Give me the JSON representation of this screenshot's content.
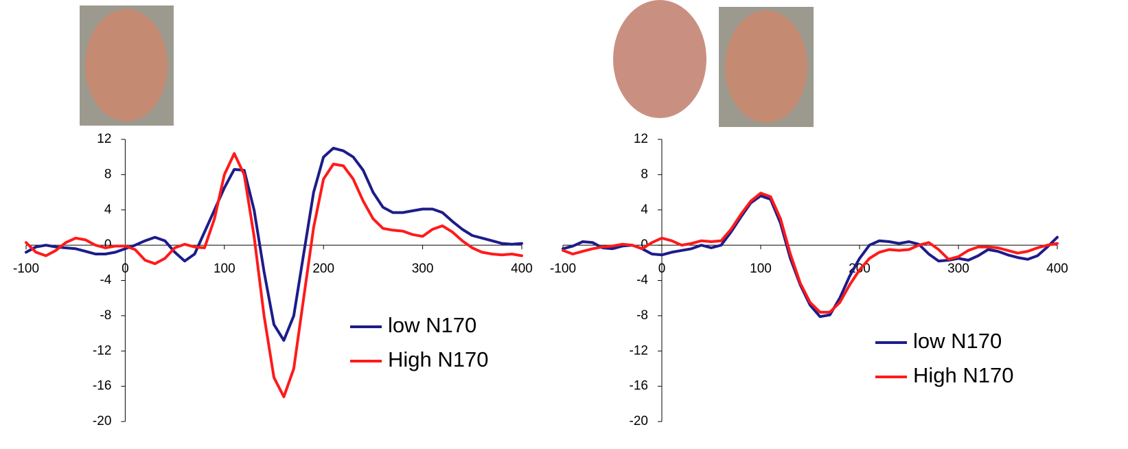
{
  "chart_data": [
    {
      "type": "line",
      "x": [
        -100,
        -90,
        -80,
        -70,
        -60,
        -50,
        -40,
        -30,
        -20,
        -10,
        0,
        10,
        20,
        30,
        40,
        50,
        60,
        70,
        80,
        90,
        100,
        110,
        120,
        130,
        140,
        150,
        160,
        170,
        180,
        190,
        200,
        210,
        220,
        230,
        240,
        250,
        260,
        270,
        280,
        290,
        300,
        310,
        320,
        330,
        340,
        350,
        360,
        370,
        380,
        390,
        400
      ],
      "xlim": [
        -100,
        400
      ],
      "xticks": [
        -100,
        0,
        100,
        200,
        300,
        400
      ],
      "ylim": [
        -20,
        12
      ],
      "yticks": [
        -20,
        -16,
        -12,
        -8,
        -4,
        0,
        4,
        8,
        12
      ],
      "series": [
        {
          "name": "low N170",
          "color": "#1c1c8a",
          "values": [
            -0.8,
            -0.2,
            0,
            -0.2,
            -0.3,
            -0.4,
            -0.7,
            -1.0,
            -1.0,
            -0.8,
            -0.4,
            0,
            0.5,
            0.9,
            0.5,
            -0.8,
            -1.8,
            -1.0,
            1.5,
            4,
            6.5,
            8.6,
            8.5,
            4,
            -3,
            -9,
            -10.8,
            -8,
            -1,
            6,
            10,
            11,
            10.7,
            10,
            8.5,
            6,
            4.3,
            3.7,
            3.7,
            3.9,
            4.1,
            4.1,
            3.7,
            2.7,
            1.8,
            1.1,
            0.8,
            0.5,
            0.2,
            0.1,
            0.2
          ]
        },
        {
          "name": "High N170",
          "color": "#ff1a1a",
          "values": [
            0.3,
            -0.8,
            -1.2,
            -0.6,
            0.3,
            0.8,
            0.6,
            0,
            -0.3,
            -0.1,
            -0.1,
            -0.5,
            -1.7,
            -2.1,
            -1.5,
            -0.3,
            0.1,
            -0.2,
            -0.3,
            3,
            8,
            10.4,
            8,
            1,
            -8,
            -15,
            -17.2,
            -14,
            -6,
            2,
            7.5,
            9.2,
            9,
            7.5,
            5,
            3,
            1.9,
            1.7,
            1.6,
            1.2,
            1.0,
            1.8,
            2.2,
            1.5,
            0.5,
            -0.3,
            -0.8,
            -1.0,
            -1.1,
            -1.0,
            -1.2
          ]
        }
      ]
    },
    {
      "type": "line",
      "x": [
        -100,
        -90,
        -80,
        -70,
        -60,
        -50,
        -40,
        -30,
        -20,
        -10,
        0,
        10,
        20,
        30,
        40,
        50,
        60,
        70,
        80,
        90,
        100,
        110,
        120,
        130,
        140,
        150,
        160,
        170,
        180,
        190,
        200,
        210,
        220,
        230,
        240,
        250,
        260,
        270,
        280,
        290,
        300,
        310,
        320,
        330,
        340,
        350,
        360,
        370,
        380,
        390,
        400
      ],
      "xlim": [
        -100,
        400
      ],
      "xticks": [
        -100,
        0,
        100,
        200,
        300,
        400
      ],
      "ylim": [
        -20,
        12
      ],
      "yticks": [
        -20,
        -16,
        -12,
        -8,
        -4,
        0,
        4,
        8,
        12
      ],
      "series": [
        {
          "name": "low N170",
          "color": "#1c1c8a",
          "values": [
            -0.4,
            -0.1,
            0.4,
            0.3,
            -0.3,
            -0.4,
            -0.1,
            0,
            -0.4,
            -1.0,
            -1.1,
            -0.8,
            -0.6,
            -0.4,
            0,
            -0.3,
            0,
            1.5,
            3.2,
            4.8,
            5.6,
            5.2,
            2.5,
            -1.5,
            -4.5,
            -6.8,
            -8.1,
            -7.9,
            -6,
            -3.5,
            -1.5,
            0,
            0.5,
            0.4,
            0.2,
            0.4,
            0.1,
            -1,
            -1.8,
            -1.7,
            -1.5,
            -1.7,
            -1.2,
            -0.5,
            -0.7,
            -1.1,
            -1.4,
            -1.6,
            -1.2,
            -0.2,
            0.9
          ]
        },
        {
          "name": "High N170",
          "color": "#ff1a1a",
          "values": [
            -0.6,
            -1.0,
            -0.7,
            -0.4,
            -0.2,
            -0.1,
            0.1,
            0,
            -0.4,
            0.3,
            0.8,
            0.5,
            0,
            0.2,
            0.5,
            0.4,
            0.5,
            1.8,
            3.5,
            5,
            5.9,
            5.5,
            3,
            -1,
            -4.3,
            -6.5,
            -7.6,
            -7.6,
            -6.5,
            -4.5,
            -2.8,
            -1.5,
            -0.8,
            -0.5,
            -0.6,
            -0.5,
            0,
            0.3,
            -0.5,
            -1.6,
            -1.3,
            -0.6,
            -0.2,
            -0.2,
            -0.3,
            -0.6,
            -0.9,
            -0.7,
            -0.3,
            0,
            0.2
          ]
        }
      ]
    }
  ]
}
